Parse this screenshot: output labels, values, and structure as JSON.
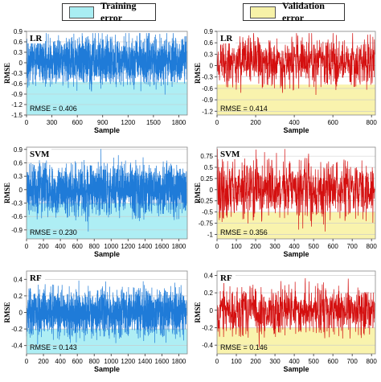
{
  "legend": {
    "training": {
      "label": "Training error",
      "color": "#a9eef3"
    },
    "validation": {
      "label": "Validation error",
      "color": "#f7f2a8"
    }
  },
  "colors": {
    "training_line": "#1f7bd8",
    "validation_line": "#d40f0f",
    "training_fill": "#aeeef4",
    "validation_fill": "#f9f3ad"
  },
  "chart_data": [
    {
      "type": "line",
      "panel": "LR training",
      "model_label": "LR",
      "ylabel": "RMSE",
      "xlabel": "Sample",
      "xlim": [
        0,
        1900
      ],
      "xticks": [
        0,
        300,
        600,
        900,
        1200,
        1500,
        1800
      ],
      "ylim": [
        -1.5,
        0.9
      ],
      "yticks": [
        -1.5,
        -1.2,
        -0.9,
        -0.6,
        -0.3,
        0,
        0.3,
        0.6,
        0.9
      ],
      "yticklabels": [
        "-1.5",
        "-1.2",
        "-0.9",
        "-0.6",
        "-0.3",
        "0",
        "0.3",
        "0.6",
        "0.9"
      ],
      "fill_below": -0.55,
      "series": [
        {
          "n": 1900,
          "amplitude": 0.6,
          "baseline": 0.05,
          "seed": 11
        }
      ],
      "annotation": "RMSE = 0.406"
    },
    {
      "type": "line",
      "panel": "LR validation",
      "model_label": "LR",
      "ylabel": "RMSE",
      "xlabel": "Sample",
      "xlim": [
        0,
        820
      ],
      "xticks": [
        0,
        200,
        400,
        600,
        800
      ],
      "ylim": [
        -1.3,
        0.9
      ],
      "yticks": [
        -1.2,
        -0.9,
        -0.6,
        -0.3,
        0,
        0.3,
        0.6,
        0.9
      ],
      "yticklabels": [
        "-1.2",
        "-0.9",
        "-0.6",
        "-0.3",
        "0",
        "0.3",
        "0.6",
        "0.9"
      ],
      "fill_below": -0.5,
      "series": [
        {
          "n": 820,
          "amplitude": 0.6,
          "baseline": 0.1,
          "seed": 23
        }
      ],
      "annotation": "RMSE = 0.414"
    },
    {
      "type": "line",
      "panel": "SVM training",
      "model_label": "SVM",
      "ylabel": "RMSE",
      "xlabel": "Sample",
      "xlim": [
        0,
        1900
      ],
      "xticks": [
        0,
        200,
        400,
        600,
        800,
        1000,
        1200,
        1400,
        1600,
        1800
      ],
      "ylim": [
        -1.1,
        0.95
      ],
      "yticks": [
        -0.9,
        -0.6,
        -0.3,
        0,
        0.3,
        0.6,
        0.9
      ],
      "yticklabels": [
        "-0.9",
        "-0.6",
        "-0.3",
        "0",
        "0.3",
        "0.6",
        "0.9"
      ],
      "fill_below": -0.3,
      "series": [
        {
          "n": 1900,
          "amplitude": 0.5,
          "baseline": 0.0,
          "seed": 37
        }
      ],
      "annotation": "RMSE = 0.230"
    },
    {
      "type": "line",
      "panel": "SVM validation",
      "model_label": "SVM",
      "ylabel": "RMSE",
      "xlabel": "Sample",
      "xlim": [
        0,
        820
      ],
      "xticks": [
        0,
        100,
        200,
        300,
        400,
        500,
        600,
        700,
        800
      ],
      "ylim": [
        -1.1,
        0.95
      ],
      "yticks": [
        -1,
        -0.75,
        -0.5,
        -0.25,
        0,
        0.25,
        0.5,
        0.75
      ],
      "yticklabels": [
        "-1",
        "-0.75",
        "-0.5",
        "-0.25",
        "0",
        "0.25",
        "0.5",
        "0.75"
      ],
      "fill_below": -0.5,
      "series": [
        {
          "n": 820,
          "amplitude": 0.6,
          "baseline": 0.0,
          "seed": 41
        }
      ],
      "annotation": "RMSE = 0.356"
    },
    {
      "type": "line",
      "panel": "RF training",
      "model_label": "RF",
      "ylabel": "RMSE",
      "xlabel": "Sample",
      "xlim": [
        0,
        1900
      ],
      "xticks": [
        0,
        200,
        400,
        600,
        800,
        1000,
        1200,
        1400,
        1600,
        1800
      ],
      "ylim": [
        -0.5,
        0.5
      ],
      "yticks": [
        -0.4,
        -0.2,
        0,
        0.2,
        0.4
      ],
      "yticklabels": [
        "-0.4",
        "-0.2",
        "0",
        "0.2",
        "0.4"
      ],
      "fill_below": -0.2,
      "series": [
        {
          "n": 1900,
          "amplitude": 0.25,
          "baseline": 0.0,
          "seed": 53
        }
      ],
      "annotation": "RMSE = 0.143"
    },
    {
      "type": "line",
      "panel": "RF validation",
      "model_label": "RF",
      "ylabel": "RMSE",
      "xlabel": "Sample",
      "xlim": [
        0,
        820
      ],
      "xticks": [
        0,
        100,
        200,
        300,
        400,
        500,
        600,
        700,
        800
      ],
      "ylim": [
        -0.5,
        0.45
      ],
      "yticks": [
        -0.4,
        -0.2,
        0,
        0.2,
        0.4
      ],
      "yticklabels": [
        "-0.4",
        "-0.2",
        "0",
        "0.2",
        "0.4"
      ],
      "fill_below": -0.2,
      "series": [
        {
          "n": 820,
          "amplitude": 0.25,
          "baseline": 0.0,
          "seed": 67
        }
      ],
      "annotation": "RMSE = 0.146"
    }
  ]
}
